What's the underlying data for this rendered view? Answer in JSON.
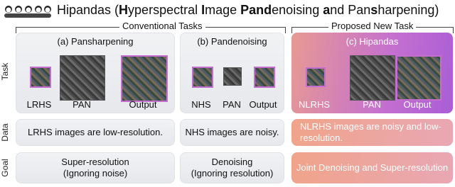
{
  "title": [
    {
      "text": "Hipandas (",
      "bold": false
    },
    {
      "text": "H",
      "bold": true
    },
    {
      "text": "yperspectral ",
      "bold": false
    },
    {
      "text": "I",
      "bold": true
    },
    {
      "text": "mage ",
      "bold": false
    },
    {
      "text": "Pand",
      "bold": true
    },
    {
      "text": "enoising ",
      "bold": false
    },
    {
      "text": "a",
      "bold": true
    },
    {
      "text": "nd Pan",
      "bold": false
    },
    {
      "text": "s",
      "bold": true
    },
    {
      "text": "harpening)",
      "bold": false
    }
  ],
  "groups": [
    "Conventional Tasks",
    "Proposed New Task"
  ],
  "rows": [
    "Task",
    "Data",
    "Goal"
  ],
  "columns": [
    {
      "title": "(a) Pansharpening",
      "images": [
        "LRHS",
        "PAN",
        "Output"
      ],
      "data": "LRHS images are low-resolution.",
      "goal": [
        "Super-resolution",
        "(Ignoring noise)"
      ]
    },
    {
      "title": "(b) Pandenoising",
      "images": [
        "NHS",
        "PAN",
        "Output"
      ],
      "data": "NHS images are noisy.",
      "goal": [
        "Denoising",
        "(Ignoring resolution)"
      ]
    },
    {
      "title": "(c) Hipandas",
      "images": [
        "NLRHS",
        "PAN",
        "Output"
      ],
      "data": "NLRHS images are noisy and low-resolution.",
      "goal": [
        "Joint Denoising and Super-resolution"
      ]
    }
  ]
}
